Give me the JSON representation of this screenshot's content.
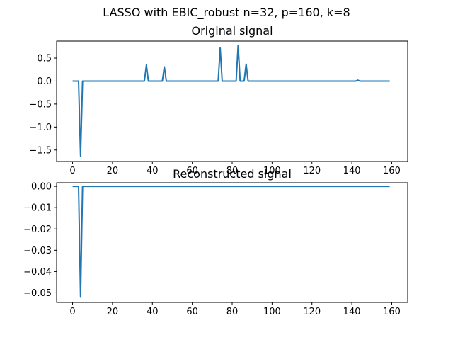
{
  "figure": {
    "suptitle": "LASSO with EBIC_robust n=32, p=160, k=8"
  },
  "colors": {
    "line": "#1f77b4",
    "axes": "#000000",
    "background": "#ffffff"
  },
  "chart_data": [
    {
      "type": "line",
      "title": "Original signal",
      "xlabel": "",
      "ylabel": "",
      "xlim": [
        -8,
        168
      ],
      "ylim": [
        -1.75,
        0.87
      ],
      "grid": false,
      "legend": "none",
      "xticks": [
        0,
        20,
        40,
        60,
        80,
        100,
        120,
        140,
        160
      ],
      "xtick_labels": [
        "0",
        "20",
        "40",
        "60",
        "80",
        "100",
        "120",
        "140",
        "160"
      ],
      "yticks": [
        0.5,
        0.0,
        -0.5,
        -1.0,
        -1.5
      ],
      "ytick_labels": [
        "0.5",
        "0.0",
        "−0.5",
        "−1.0",
        "−1.5"
      ],
      "length": 160,
      "series": [
        {
          "default_value": 0,
          "nonzero": [
            {
              "x": 4,
              "y": -1.63
            },
            {
              "x": 37,
              "y": 0.35
            },
            {
              "x": 46,
              "y": 0.31
            },
            {
              "x": 74,
              "y": 0.72
            },
            {
              "x": 83,
              "y": 0.78
            },
            {
              "x": 87,
              "y": 0.37
            },
            {
              "x": 143,
              "y": 0.02
            }
          ]
        }
      ]
    },
    {
      "type": "line",
      "title": "Reconstructed signal",
      "xlabel": "",
      "ylabel": "",
      "xlim": [
        -8,
        168
      ],
      "ylim": [
        -0.0545,
        0.0017
      ],
      "grid": false,
      "legend": "none",
      "xticks": [
        0,
        20,
        40,
        60,
        80,
        100,
        120,
        140,
        160
      ],
      "xtick_labels": [
        "0",
        "20",
        "40",
        "60",
        "80",
        "100",
        "120",
        "140",
        "160"
      ],
      "yticks": [
        0.0,
        -0.01,
        -0.02,
        -0.03,
        -0.04,
        -0.05
      ],
      "ytick_labels": [
        "0.00",
        "−0.01",
        "−0.02",
        "−0.03",
        "−0.04",
        "−0.05"
      ],
      "length": 160,
      "series": [
        {
          "default_value": 0,
          "nonzero": [
            {
              "x": 4,
              "y": -0.052
            }
          ]
        }
      ]
    }
  ]
}
